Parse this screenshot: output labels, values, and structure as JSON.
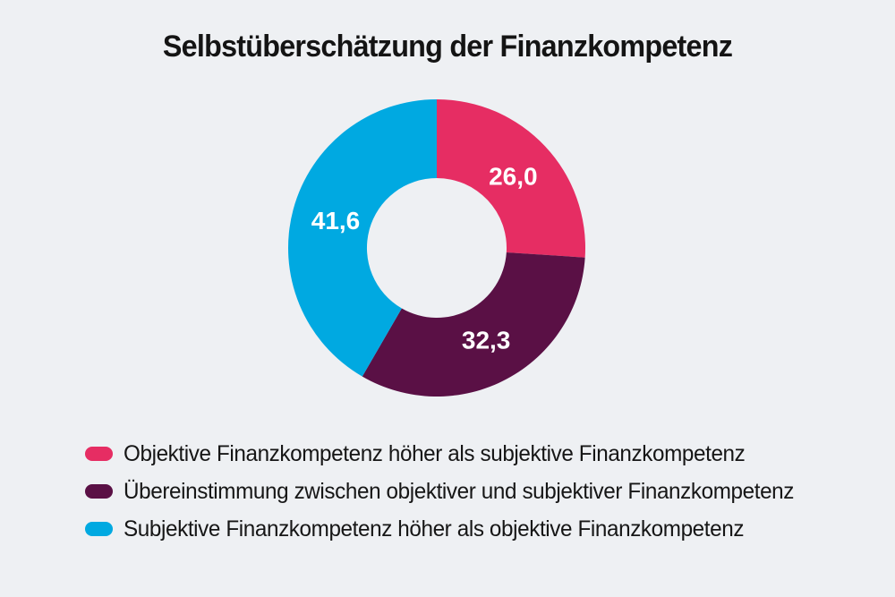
{
  "title": "Selbstüberschätzung der Finanzkompetenz",
  "colors": {
    "background": "#eef0f3",
    "title_text": "#141414",
    "slice_label_text": "#ffffff",
    "pink": "#e62d63",
    "dark_purple": "#5a1045",
    "light_blue": "#00a9e1"
  },
  "chart_data": {
    "type": "pie",
    "variant": "donut",
    "title": "Selbstüberschätzung der Finanzkompetenz",
    "categories": [
      "Objektive Finanzkompetenz höher als subjektive Finanzkompetenz",
      "Übereinstimmung zwischen objektiver und subjektiver Finanzkompetenz",
      "Subjektive Finanzkompetenz höher als objektive Finanzkompetenz"
    ],
    "values": [
      26.0,
      32.3,
      41.6
    ],
    "value_labels": [
      "26,0",
      "32,3",
      "41,6"
    ],
    "slice_colors": [
      "#e62d63",
      "#5a1045",
      "#00a9e1"
    ],
    "start_angle_deg": 0,
    "direction": "clockwise",
    "inner_radius_ratio": 0.47,
    "grid": false,
    "legend_position": "bottom-left"
  },
  "legend": {
    "items": [
      {
        "label": "Objektive Finanzkompetenz höher als subjektive Finanzkompetenz",
        "color": "#e62d63"
      },
      {
        "label": "Übereinstimmung zwischen objektiver und subjektiver Finanzkompetenz",
        "color": "#5a1045"
      },
      {
        "label": "Subjektive Finanzkompetenz höher als objektive Finanzkompetenz",
        "color": "#00a9e1"
      }
    ]
  }
}
